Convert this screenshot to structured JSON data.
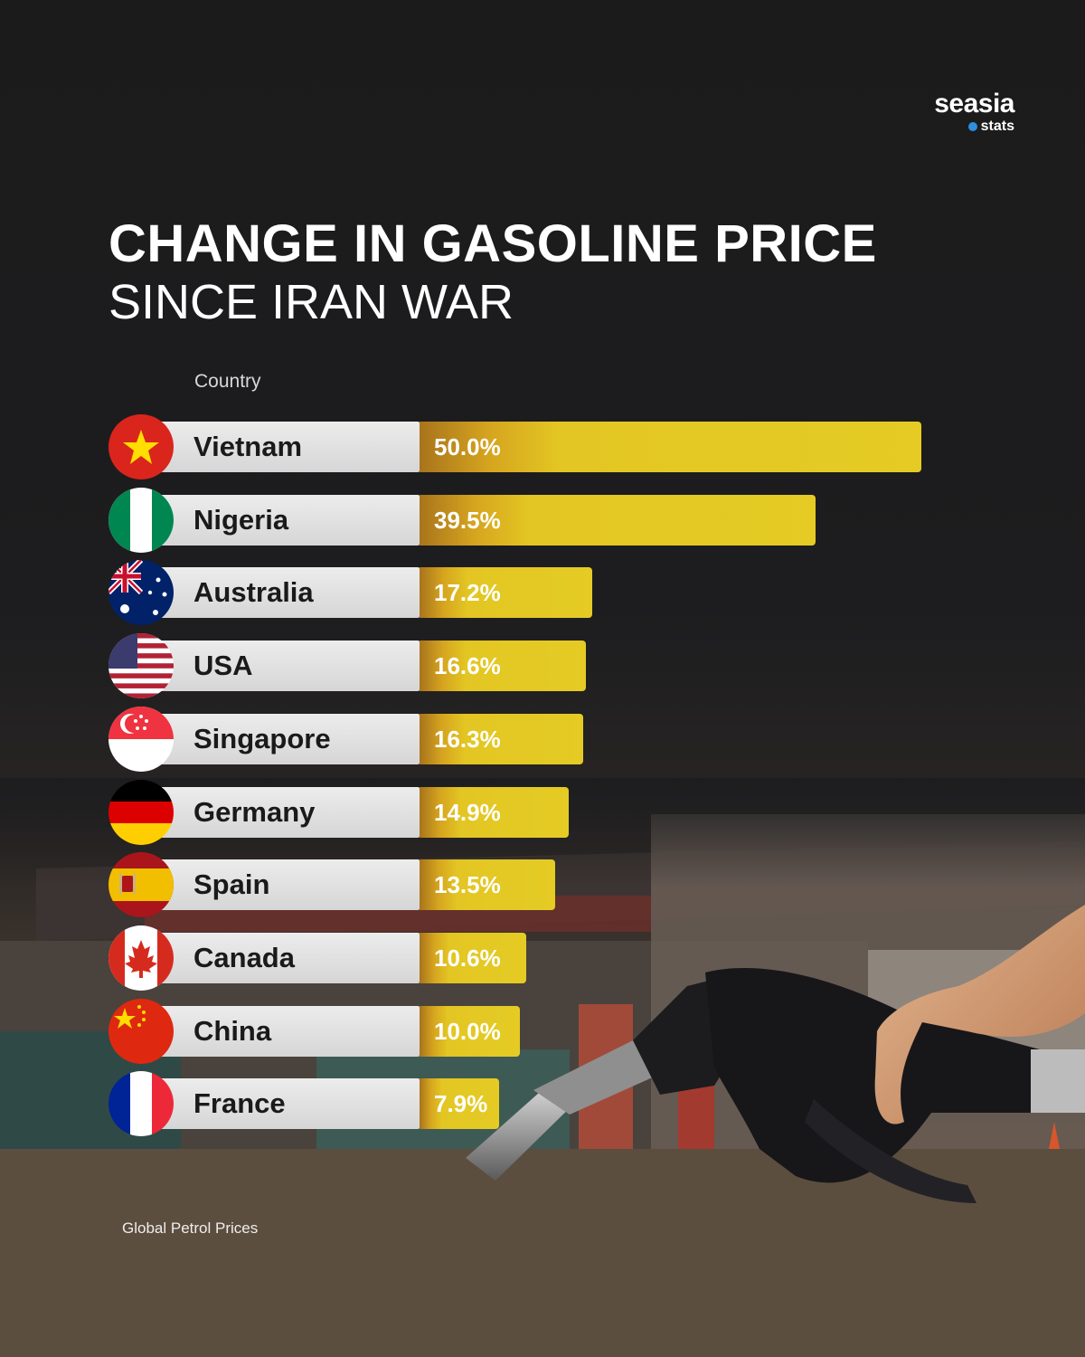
{
  "logo": {
    "name": "seasia",
    "sub": "stats"
  },
  "header": {
    "title": "CHANGE IN GASOLINE PRICE",
    "subtitle": "SINCE IRAN WAR"
  },
  "column_header": "Country",
  "source": "Global Petrol Prices",
  "colors": {
    "bar": "#e5cb24",
    "bar_shade": "#a8741c",
    "label_bg": "#e3e3e3"
  },
  "chart_data": {
    "type": "bar",
    "orientation": "horizontal",
    "title": "CHANGE IN GASOLINE PRICE",
    "subtitle": "SINCE IRAN WAR",
    "xlabel": "",
    "ylabel": "Country",
    "categories": [
      "Vietnam",
      "Nigeria",
      "Australia",
      "USA",
      "Singapore",
      "Germany",
      "Spain",
      "Canada",
      "China",
      "France"
    ],
    "values": [
      50.0,
      39.5,
      17.2,
      16.6,
      16.3,
      14.9,
      13.5,
      10.6,
      10.0,
      7.9
    ],
    "value_labels": [
      "50.0%",
      "39.5%",
      "17.2%",
      "16.6%",
      "16.3%",
      "14.9%",
      "13.5%",
      "10.6%",
      "10.0%",
      "7.9%"
    ],
    "unit": "%",
    "flags": [
      "vietnam-flag",
      "nigeria-flag",
      "australia-flag",
      "usa-flag",
      "singapore-flag",
      "germany-flag",
      "spain-flag",
      "canada-flag",
      "china-flag",
      "france-flag"
    ],
    "grid": false,
    "legend": "none"
  }
}
